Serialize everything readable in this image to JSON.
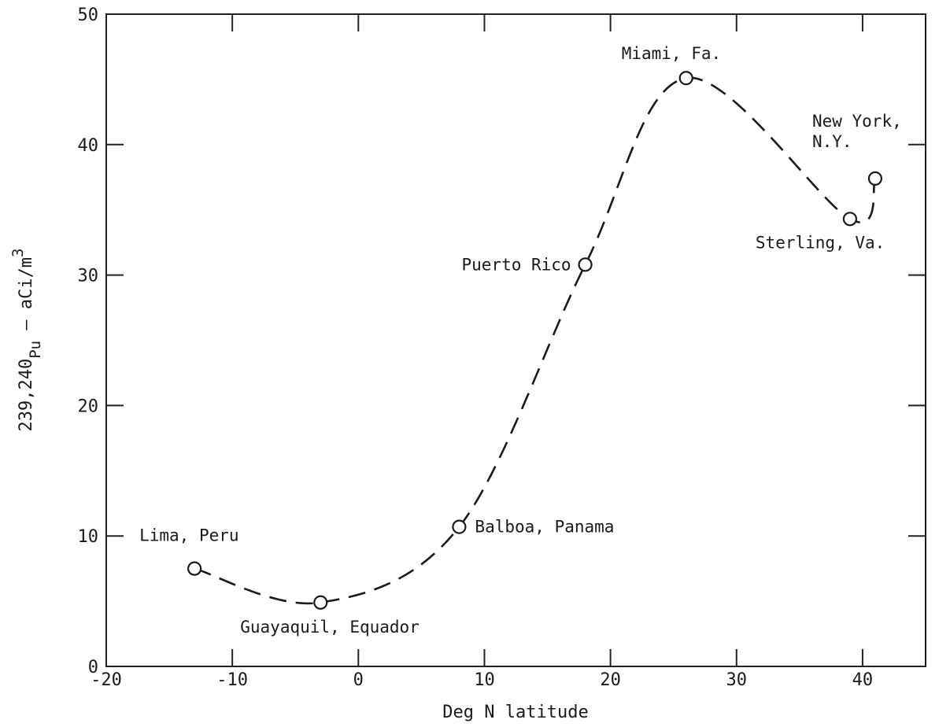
{
  "chart_data": {
    "type": "line",
    "title": "",
    "xlabel": "Deg N latitude",
    "ylabel": "239,240Pu – aCi/m3",
    "ylabel_parts": {
      "prefix": "239,240",
      "sub": "Pu",
      "mid": " – aCi/m",
      "sup": "3"
    },
    "xlim": [
      -20,
      45
    ],
    "ylim": [
      0,
      50
    ],
    "x_ticks": [
      -20,
      -10,
      0,
      10,
      20,
      30,
      40
    ],
    "y_ticks": [
      0,
      10,
      20,
      30,
      40,
      50
    ],
    "x_tick_labels": [
      "-20",
      "-10",
      "0",
      "10",
      "20",
      "30",
      "40"
    ],
    "y_tick_labels": [
      "0",
      "10",
      "20",
      "30",
      "40",
      "50"
    ],
    "grid": false,
    "line_style": "dashed",
    "marker": "open-circle",
    "points": [
      {
        "x": -13,
        "y": 7.5,
        "label": [
          "Lima, Peru"
        ]
      },
      {
        "x": -3,
        "y": 4.9,
        "label": [
          "Guayaquil, Equador"
        ]
      },
      {
        "x": 8,
        "y": 10.7,
        "label": [
          "Balboa, Panama"
        ]
      },
      {
        "x": 18,
        "y": 30.8,
        "label": [
          "Puerto Rico"
        ]
      },
      {
        "x": 26,
        "y": 45.1,
        "label": [
          "Miami, Fa."
        ]
      },
      {
        "x": 39,
        "y": 34.3,
        "label": [
          "Sterling, Va."
        ]
      },
      {
        "x": 41,
        "y": 37.4,
        "label": [
          "New York,",
          "N.Y."
        ]
      }
    ]
  }
}
